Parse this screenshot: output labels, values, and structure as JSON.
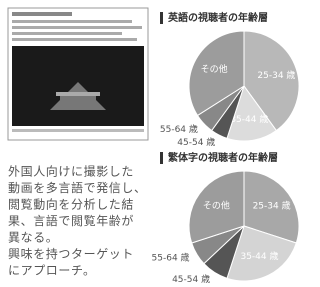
{
  "paragraph": [
    "外国人向けに撮影した",
    "動画を多言語で発信し、",
    "閲覧動向を分析した結",
    "果、言語で閲覧年齢が",
    "異なる。",
    "興味を持つターゲット",
    "にアプローチ。"
  ],
  "charts": [
    {
      "type": "pie",
      "title": "英語の視聴者の年齢層",
      "categories": [
        "25-34 歳",
        "35-44 歳",
        "45-54 歳",
        "55-64 歳",
        "その他"
      ],
      "values": [
        40,
        15,
        5,
        6,
        34
      ],
      "colors": [
        "#b8b8b8",
        "#dcdcdc",
        "#555555",
        "#888888",
        "#9c9c9c"
      ]
    },
    {
      "type": "pie",
      "title": "繁体字の視聴者の年齢層",
      "categories": [
        "25-34 歳",
        "35-44 歳",
        "45-54 歳",
        "55-64 歳",
        "その他"
      ],
      "values": [
        30,
        25,
        8,
        7,
        30
      ],
      "colors": [
        "#a8a8a8",
        "#d4d4d4",
        "#555555",
        "#888888",
        "#9c9c9c"
      ]
    }
  ]
}
